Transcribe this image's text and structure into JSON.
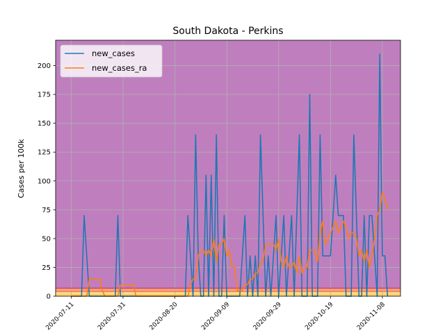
{
  "chart_data": {
    "type": "line",
    "title": "South Dakota - Perkins",
    "xlabel": "",
    "ylabel": "Cases per 100k",
    "x_start": "2020-07-05",
    "x_tick_labels": [
      "2020-07-11",
      "2020-07-31",
      "2020-08-20",
      "2020-09-09",
      "2020-09-29",
      "2020-10-19",
      "2020-11-08"
    ],
    "xlim": [
      "2020-07-05",
      "2020-11-15"
    ],
    "ylim": [
      0,
      222
    ],
    "y_ticks": [
      0,
      25,
      50,
      75,
      100,
      125,
      150,
      175,
      200
    ],
    "grid": true,
    "legend_position": "upper-left",
    "background_bands": [
      {
        "from": 7,
        "to": 222,
        "color": "#bf7fbf"
      },
      {
        "from": 4,
        "to": 7,
        "color": "#f0a080"
      },
      {
        "from": 1,
        "to": 4,
        "color": "#fcd88a"
      },
      {
        "from": 0,
        "to": 1,
        "color": "#fef0b0"
      }
    ],
    "threshold_lines": [
      {
        "value": 7,
        "color": "#d8385a"
      },
      {
        "value": 4,
        "color": "#f08040"
      },
      {
        "value": 1,
        "color": "#fcc040"
      }
    ],
    "series": [
      {
        "name": "new_cases",
        "color": "#1f77b4",
        "points": [
          [
            "2020-07-11",
            0
          ],
          [
            "2020-07-15",
            0
          ],
          [
            "2020-07-16",
            70
          ],
          [
            "2020-07-17",
            35
          ],
          [
            "2020-07-18",
            0
          ],
          [
            "2020-07-28",
            0
          ],
          [
            "2020-07-29",
            70
          ],
          [
            "2020-07-30",
            0
          ],
          [
            "2020-08-24",
            0
          ],
          [
            "2020-08-25",
            70
          ],
          [
            "2020-08-26",
            35
          ],
          [
            "2020-08-27",
            0
          ],
          [
            "2020-08-28",
            140
          ],
          [
            "2020-08-29",
            35
          ],
          [
            "2020-08-30",
            0
          ],
          [
            "2020-08-31",
            0
          ],
          [
            "2020-09-01",
            105
          ],
          [
            "2020-09-02",
            0
          ],
          [
            "2020-09-03",
            105
          ],
          [
            "2020-09-04",
            0
          ],
          [
            "2020-09-05",
            140
          ],
          [
            "2020-09-06",
            0
          ],
          [
            "2020-09-07",
            0
          ],
          [
            "2020-09-08",
            70
          ],
          [
            "2020-09-09",
            0
          ],
          [
            "2020-09-14",
            0
          ],
          [
            "2020-09-16",
            70
          ],
          [
            "2020-09-17",
            0
          ],
          [
            "2020-09-18",
            35
          ],
          [
            "2020-09-19",
            0
          ],
          [
            "2020-09-20",
            35
          ],
          [
            "2020-09-21",
            0
          ],
          [
            "2020-09-22",
            140
          ],
          [
            "2020-09-24",
            0
          ],
          [
            "2020-09-25",
            35
          ],
          [
            "2020-09-26",
            0
          ],
          [
            "2020-09-28",
            70
          ],
          [
            "2020-09-29",
            0
          ],
          [
            "2020-10-01",
            70
          ],
          [
            "2020-10-02",
            0
          ],
          [
            "2020-10-04",
            70
          ],
          [
            "2020-10-05",
            0
          ],
          [
            "2020-10-07",
            140
          ],
          [
            "2020-10-08",
            0
          ],
          [
            "2020-10-10",
            0
          ],
          [
            "2020-10-11",
            175
          ],
          [
            "2020-10-12",
            0
          ],
          [
            "2020-10-14",
            0
          ],
          [
            "2020-10-15",
            140
          ],
          [
            "2020-10-16",
            35
          ],
          [
            "2020-10-19",
            35
          ],
          [
            "2020-10-20",
            70
          ],
          [
            "2020-10-21",
            105
          ],
          [
            "2020-10-22",
            70
          ],
          [
            "2020-10-24",
            70
          ],
          [
            "2020-10-25",
            0
          ],
          [
            "2020-10-26",
            0
          ],
          [
            "2020-10-27",
            0
          ],
          [
            "2020-10-28",
            140
          ],
          [
            "2020-10-29",
            70
          ],
          [
            "2020-10-30",
            0
          ],
          [
            "2020-10-31",
            0
          ],
          [
            "2020-11-01",
            70
          ],
          [
            "2020-11-02",
            0
          ],
          [
            "2020-11-03",
            70
          ],
          [
            "2020-11-04",
            70
          ],
          [
            "2020-11-05",
            35
          ],
          [
            "2020-11-06",
            0
          ],
          [
            "2020-11-07",
            210
          ],
          [
            "2020-11-08",
            35
          ],
          [
            "2020-11-09",
            35
          ],
          [
            "2020-11-10",
            0
          ]
        ]
      },
      {
        "name": "new_cases_ra",
        "color": "#ff7f0e",
        "points": [
          [
            "2020-07-11",
            0
          ],
          [
            "2020-07-17",
            0
          ],
          [
            "2020-07-18",
            15
          ],
          [
            "2020-07-21",
            15
          ],
          [
            "2020-07-22",
            15
          ],
          [
            "2020-07-23",
            5
          ],
          [
            "2020-07-24",
            0
          ],
          [
            "2020-07-29",
            0
          ],
          [
            "2020-07-30",
            10
          ],
          [
            "2020-08-04",
            10
          ],
          [
            "2020-08-05",
            0
          ],
          [
            "2020-08-25",
            0
          ],
          [
            "2020-08-26",
            10
          ],
          [
            "2020-08-27",
            15
          ],
          [
            "2020-08-28",
            15
          ],
          [
            "2020-08-29",
            35
          ],
          [
            "2020-08-30",
            40
          ],
          [
            "2020-08-31",
            40
          ],
          [
            "2020-09-01",
            35
          ],
          [
            "2020-09-02",
            40
          ],
          [
            "2020-09-03",
            35
          ],
          [
            "2020-09-04",
            50
          ],
          [
            "2020-09-05",
            30
          ],
          [
            "2020-09-06",
            45
          ],
          [
            "2020-09-07",
            45
          ],
          [
            "2020-09-08",
            50
          ],
          [
            "2020-09-09",
            35
          ],
          [
            "2020-09-10",
            40
          ],
          [
            "2020-09-11",
            25
          ],
          [
            "2020-09-12",
            25
          ],
          [
            "2020-09-13",
            5
          ],
          [
            "2020-09-14",
            5
          ],
          [
            "2020-09-15",
            5
          ],
          [
            "2020-09-16",
            10
          ],
          [
            "2020-09-17",
            10
          ],
          [
            "2020-09-18",
            15
          ],
          [
            "2020-09-19",
            15
          ],
          [
            "2020-09-20",
            20
          ],
          [
            "2020-09-21",
            20
          ],
          [
            "2020-09-22",
            30
          ],
          [
            "2020-09-23",
            30
          ],
          [
            "2020-09-24",
            45
          ],
          [
            "2020-09-25",
            45
          ],
          [
            "2020-09-26",
            45
          ],
          [
            "2020-09-27",
            45
          ],
          [
            "2020-09-28",
            40
          ],
          [
            "2020-09-29",
            50
          ],
          [
            "2020-09-30",
            30
          ],
          [
            "2020-10-01",
            25
          ],
          [
            "2020-10-02",
            35
          ],
          [
            "2020-10-03",
            25
          ],
          [
            "2020-10-04",
            25
          ],
          [
            "2020-10-05",
            30
          ],
          [
            "2020-10-06",
            20
          ],
          [
            "2020-10-07",
            35
          ],
          [
            "2020-10-08",
            20
          ],
          [
            "2020-10-09",
            25
          ],
          [
            "2020-10-10",
            25
          ],
          [
            "2020-10-11",
            40
          ],
          [
            "2020-10-12",
            40
          ],
          [
            "2020-10-13",
            40
          ],
          [
            "2020-10-14",
            30
          ],
          [
            "2020-10-15",
            55
          ],
          [
            "2020-10-16",
            65
          ],
          [
            "2020-10-17",
            45
          ],
          [
            "2020-10-18",
            50
          ],
          [
            "2020-10-19",
            55
          ],
          [
            "2020-10-20",
            60
          ],
          [
            "2020-10-21",
            65
          ],
          [
            "2020-10-22",
            55
          ],
          [
            "2020-10-23",
            60
          ],
          [
            "2020-10-24",
            65
          ],
          [
            "2020-10-25",
            60
          ],
          [
            "2020-10-26",
            50
          ],
          [
            "2020-10-27",
            55
          ],
          [
            "2020-10-28",
            55
          ],
          [
            "2020-10-29",
            50
          ],
          [
            "2020-10-30",
            35
          ],
          [
            "2020-10-31",
            40
          ],
          [
            "2020-11-01",
            30
          ],
          [
            "2020-11-02",
            40
          ],
          [
            "2020-11-03",
            25
          ],
          [
            "2020-11-04",
            35
          ],
          [
            "2020-11-05",
            50
          ],
          [
            "2020-11-06",
            70
          ],
          [
            "2020-11-07",
            75
          ],
          [
            "2020-11-08",
            90
          ],
          [
            "2020-11-09",
            85
          ],
          [
            "2020-11-10",
            75
          ]
        ]
      }
    ]
  }
}
